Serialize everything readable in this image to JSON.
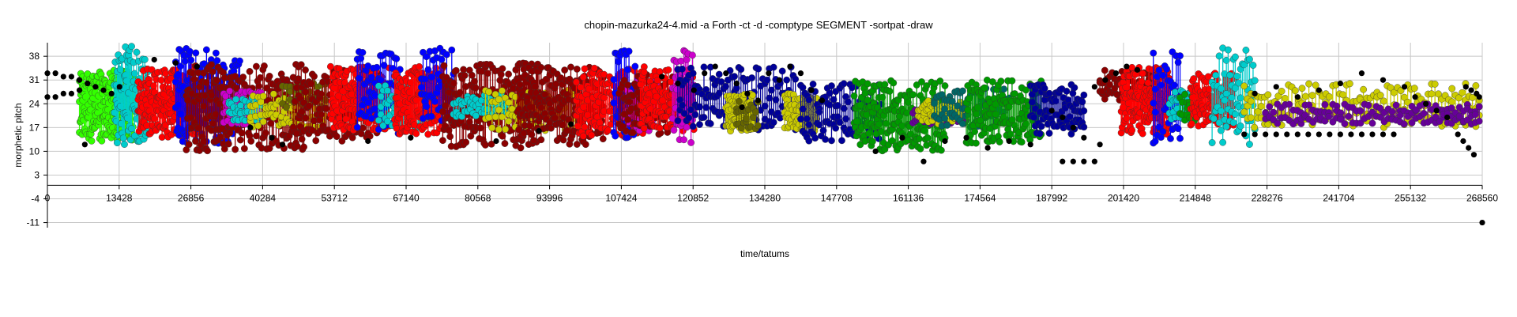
{
  "chart_data": {
    "type": "scatter",
    "title": "chopin-mazurka24-4.mid  -a Forth -ct -d -comptype SEGMENT -sortpat -draw",
    "xlabel": "time/tatums",
    "ylabel": "morphetic pitch",
    "xlim": [
      0,
      268560
    ],
    "ylim": [
      -12.5,
      42
    ],
    "grid": true,
    "x_ticks": [
      0,
      13428,
      26856,
      40284,
      53712,
      67140,
      80568,
      93996,
      107424,
      120852,
      134280,
      147708,
      161136,
      174564,
      187992,
      201420,
      214848,
      228276,
      241704,
      255132,
      268560
    ],
    "y_ticks": [
      -11,
      -4,
      3,
      10,
      17,
      24,
      31,
      38
    ],
    "colors": {
      "black": "#000000",
      "green": "#33ff00",
      "cyan": "#00cccc",
      "red": "#ff0000",
      "blue": "#0000ff",
      "darkred": "#8b0000",
      "yellow": "#cccc00",
      "magenta": "#cc00cc",
      "navy": "#000099",
      "darkgreen": "#009900",
      "teal": "#006666",
      "purple": "#660099",
      "olive": "#666600"
    },
    "background_points": [
      [
        0,
        33
      ],
      [
        1500,
        33
      ],
      [
        3000,
        32
      ],
      [
        4500,
        32
      ],
      [
        6000,
        31
      ],
      [
        7500,
        30
      ],
      [
        9000,
        29
      ],
      [
        10500,
        28
      ],
      [
        12000,
        27
      ],
      [
        13500,
        29
      ],
      [
        0,
        26
      ],
      [
        1500,
        26
      ],
      [
        3000,
        27
      ],
      [
        4500,
        27
      ],
      [
        6000,
        28
      ],
      [
        7000,
        12
      ],
      [
        20000,
        37
      ],
      [
        24000,
        36
      ],
      [
        28000,
        35
      ],
      [
        38000,
        17
      ],
      [
        42000,
        14
      ],
      [
        44000,
        12
      ],
      [
        60000,
        13
      ],
      [
        68000,
        14
      ],
      [
        84000,
        13
      ],
      [
        92000,
        16
      ],
      [
        98000,
        18
      ],
      [
        115000,
        32
      ],
      [
        118000,
        30
      ],
      [
        121000,
        28
      ],
      [
        123000,
        33
      ],
      [
        125000,
        35
      ],
      [
        127000,
        33
      ],
      [
        129000,
        30
      ],
      [
        131000,
        27
      ],
      [
        133000,
        25
      ],
      [
        135000,
        33
      ],
      [
        137000,
        31
      ],
      [
        139000,
        35
      ],
      [
        141000,
        33
      ],
      [
        143000,
        28
      ],
      [
        145000,
        25
      ],
      [
        130000,
        23
      ],
      [
        155000,
        10
      ],
      [
        160000,
        14
      ],
      [
        164000,
        7
      ],
      [
        168000,
        13
      ],
      [
        172000,
        14
      ],
      [
        176000,
        11
      ],
      [
        180000,
        13
      ],
      [
        184000,
        12
      ],
      [
        190000,
        7
      ],
      [
        192000,
        7
      ],
      [
        194000,
        7
      ],
      [
        196000,
        7
      ],
      [
        188000,
        22
      ],
      [
        190000,
        20
      ],
      [
        192000,
        17
      ],
      [
        194000,
        14
      ],
      [
        196000,
        29
      ],
      [
        198000,
        31
      ],
      [
        200000,
        33
      ],
      [
        202000,
        35
      ],
      [
        204000,
        34
      ],
      [
        197000,
        12
      ],
      [
        224000,
        15
      ],
      [
        226000,
        15
      ],
      [
        228000,
        15
      ],
      [
        230000,
        15
      ],
      [
        232000,
        15
      ],
      [
        234000,
        15
      ],
      [
        236000,
        15
      ],
      [
        238000,
        15
      ],
      [
        240000,
        15
      ],
      [
        242000,
        15
      ],
      [
        244000,
        15
      ],
      [
        246000,
        15
      ],
      [
        248000,
        15
      ],
      [
        250000,
        15
      ],
      [
        252000,
        15
      ],
      [
        226000,
        27
      ],
      [
        230000,
        29
      ],
      [
        234000,
        26
      ],
      [
        238000,
        28
      ],
      [
        242000,
        30
      ],
      [
        246000,
        33
      ],
      [
        250000,
        31
      ],
      [
        254000,
        29
      ],
      [
        256000,
        26
      ],
      [
        258000,
        24
      ],
      [
        260000,
        22
      ],
      [
        262000,
        20
      ],
      [
        264000,
        15
      ],
      [
        265000,
        13
      ],
      [
        266000,
        11
      ],
      [
        267000,
        9
      ],
      [
        265500,
        29
      ],
      [
        266500,
        28
      ],
      [
        267500,
        27
      ],
      [
        268000,
        26
      ],
      [
        268560,
        -11
      ]
    ],
    "series": [
      {
        "color": "green",
        "x_range": [
          6000,
          16000
        ],
        "y_range": [
          13,
          34
        ],
        "count": 80
      },
      {
        "color": "cyan",
        "x_range": [
          12500,
          19000
        ],
        "y_range": [
          12,
          41
        ],
        "count": 35
      },
      {
        "color": "red",
        "x_range": [
          17000,
          28000
        ],
        "y_range": [
          14,
          35
        ],
        "count": 70
      },
      {
        "color": "blue",
        "x_range": [
          24000,
          36000
        ],
        "y_range": [
          12,
          41
        ],
        "count": 55
      },
      {
        "color": "darkred",
        "x_range": [
          26000,
          48000
        ],
        "y_range": [
          10,
          36
        ],
        "count": 90
      },
      {
        "color": "magenta",
        "x_range": [
          33000,
          40000
        ],
        "y_range": [
          18,
          28
        ],
        "count": 20
      },
      {
        "color": "cyan",
        "x_range": [
          34000,
          40000
        ],
        "y_range": [
          19,
          26
        ],
        "count": 15
      },
      {
        "color": "yellow",
        "x_range": [
          38000,
          52000
        ],
        "y_range": [
          17,
          27
        ],
        "count": 30
      },
      {
        "color": "olive",
        "x_range": [
          44000,
          52000
        ],
        "y_range": [
          23,
          30
        ],
        "count": 12
      },
      {
        "color": "darkred",
        "x_range": [
          46000,
          62000
        ],
        "y_range": [
          13,
          34
        ],
        "count": 50
      },
      {
        "color": "red",
        "x_range": [
          53000,
          64000
        ],
        "y_range": [
          16,
          35
        ],
        "count": 55
      },
      {
        "color": "blue",
        "x_range": [
          58000,
          66000
        ],
        "y_range": [
          15,
          40
        ],
        "count": 25
      },
      {
        "color": "cyan",
        "x_range": [
          62000,
          72000
        ],
        "y_range": [
          17,
          31
        ],
        "count": 25
      },
      {
        "color": "red",
        "x_range": [
          65000,
          74000
        ],
        "y_range": [
          15,
          35
        ],
        "count": 50
      },
      {
        "color": "blue",
        "x_range": [
          70000,
          76000
        ],
        "y_range": [
          18,
          41
        ],
        "count": 20
      },
      {
        "color": "darkred",
        "x_range": [
          74000,
          92000
        ],
        "y_range": [
          11,
          36
        ],
        "count": 80
      },
      {
        "color": "cyan",
        "x_range": [
          76000,
          86000
        ],
        "y_range": [
          20,
          27
        ],
        "count": 20
      },
      {
        "color": "yellow",
        "x_range": [
          82000,
          100000
        ],
        "y_range": [
          16,
          28
        ],
        "count": 30
      },
      {
        "color": "darkred",
        "x_range": [
          88000,
          104000
        ],
        "y_range": [
          12,
          35
        ],
        "count": 70
      },
      {
        "color": "red",
        "x_range": [
          99000,
          113000
        ],
        "y_range": [
          14,
          35
        ],
        "count": 55
      },
      {
        "color": "blue",
        "x_range": [
          106000,
          110000
        ],
        "y_range": [
          12,
          40
        ],
        "count": 15
      },
      {
        "color": "magenta",
        "x_range": [
          108000,
          114000
        ],
        "y_range": [
          15,
          31
        ],
        "count": 18
      },
      {
        "color": "darkred",
        "x_range": [
          107000,
          118000
        ],
        "y_range": [
          15,
          33
        ],
        "count": 35
      },
      {
        "color": "red",
        "x_range": [
          111000,
          121000
        ],
        "y_range": [
          16,
          34
        ],
        "count": 45
      },
      {
        "color": "magenta",
        "x_range": [
          117000,
          121000
        ],
        "y_range": [
          12,
          41
        ],
        "count": 16
      },
      {
        "color": "navy",
        "x_range": [
          118000,
          140000
        ],
        "y_range": [
          16,
          35
        ],
        "count": 55
      },
      {
        "color": "yellow",
        "x_range": [
          127000,
          132000
        ],
        "y_range": [
          16,
          27
        ],
        "count": 30
      },
      {
        "color": "olive",
        "x_range": [
          129000,
          133000
        ],
        "y_range": [
          16,
          26
        ],
        "count": 10
      },
      {
        "color": "yellow",
        "x_range": [
          138000,
          144000
        ],
        "y_range": [
          16,
          27
        ],
        "count": 30
      },
      {
        "color": "navy",
        "x_range": [
          141000,
          156000
        ],
        "y_range": [
          13,
          30
        ],
        "count": 40
      },
      {
        "color": "darkgreen",
        "x_range": [
          151000,
          168000
        ],
        "y_range": [
          10,
          31
        ],
        "count": 75
      },
      {
        "color": "purple",
        "x_range": [
          162000,
          172000
        ],
        "y_range": [
          18,
          23
        ],
        "count": 25
      },
      {
        "color": "yellow",
        "x_range": [
          163000,
          172000
        ],
        "y_range": [
          18,
          25
        ],
        "count": 25
      },
      {
        "color": "teal",
        "x_range": [
          166000,
          180000
        ],
        "y_range": [
          17,
          29
        ],
        "count": 30
      },
      {
        "color": "darkgreen",
        "x_range": [
          172000,
          186000
        ],
        "y_range": [
          12,
          31
        ],
        "count": 55
      },
      {
        "color": "navy",
        "x_range": [
          184000,
          194000
        ],
        "y_range": [
          15,
          30
        ],
        "count": 35
      },
      {
        "color": "darkred",
        "x_range": [
          197000,
          208000
        ],
        "y_range": [
          25,
          34
        ],
        "count": 25
      },
      {
        "color": "red",
        "x_range": [
          201000,
          210000
        ],
        "y_range": [
          15,
          35
        ],
        "count": 55
      },
      {
        "color": "blue",
        "x_range": [
          207000,
          212000
        ],
        "y_range": [
          12,
          40
        ],
        "count": 15
      },
      {
        "color": "cyan",
        "x_range": [
          210000,
          214000
        ],
        "y_range": [
          19,
          28
        ],
        "count": 12
      },
      {
        "color": "darkgreen",
        "x_range": [
          212000,
          216000
        ],
        "y_range": [
          19,
          27
        ],
        "count": 10
      },
      {
        "color": "red",
        "x_range": [
          214000,
          222000
        ],
        "y_range": [
          17,
          33
        ],
        "count": 45
      },
      {
        "color": "cyan",
        "x_range": [
          218000,
          226000
        ],
        "y_range": [
          12,
          41
        ],
        "count": 25
      },
      {
        "color": "yellow",
        "x_range": [
          224000,
          268000
        ],
        "y_range": [
          17,
          30
        ],
        "count": 70
      },
      {
        "color": "purple",
        "x_range": [
          228000,
          268000
        ],
        "y_range": [
          18,
          24
        ],
        "count": 55
      }
    ]
  }
}
